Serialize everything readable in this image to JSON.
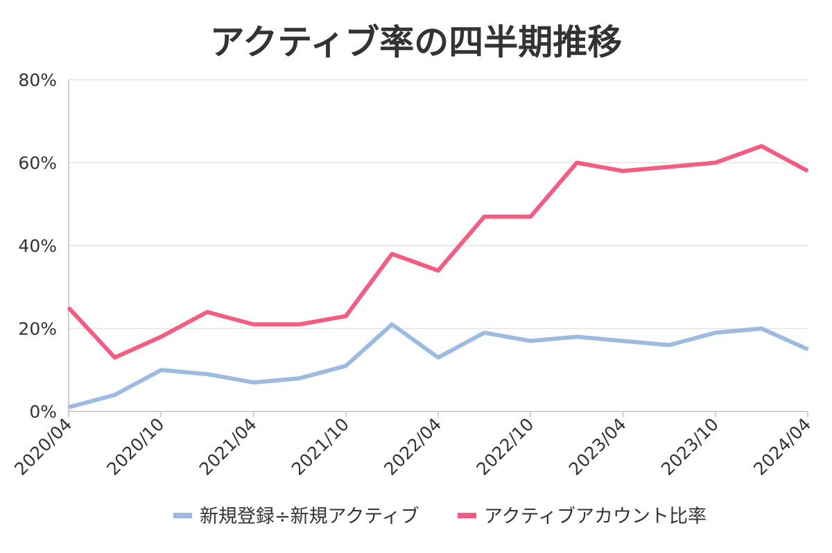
{
  "chart_data": {
    "type": "line",
    "title": "アクティブ率の四半期推移",
    "xlabel": "",
    "ylabel": "",
    "ylim": [
      0,
      80
    ],
    "y_ticks": [
      0,
      20,
      40,
      60,
      80
    ],
    "y_tick_labels": [
      "0%",
      "20%",
      "40%",
      "60%",
      "80%"
    ],
    "grid": true,
    "legend_position": "bottom",
    "categories": [
      "2020/04",
      "2020/07",
      "2020/10",
      "2021/01",
      "2021/04",
      "2021/07",
      "2021/10",
      "2022/01",
      "2022/04",
      "2022/07",
      "2022/10",
      "2023/01",
      "2023/04",
      "2023/07",
      "2023/10",
      "2024/01",
      "2024/04"
    ],
    "x_tick_labels": [
      "2020/04",
      "2020/10",
      "2021/04",
      "2021/10",
      "2022/04",
      "2022/10",
      "2023/04",
      "2023/10",
      "2024/04"
    ],
    "series": [
      {
        "name": "新規登録÷新規アクティブ",
        "color": "#9dbbe0",
        "values": [
          1,
          4,
          10,
          9,
          7,
          8,
          11,
          21,
          13,
          19,
          17,
          18,
          17,
          16,
          19,
          20,
          15
        ]
      },
      {
        "name": "アクティブアカウント比率",
        "color": "#f55c82",
        "values": [
          25,
          13,
          18,
          24,
          21,
          21,
          23,
          38,
          34,
          47,
          47,
          60,
          58,
          59,
          60,
          64,
          58
        ]
      }
    ]
  }
}
